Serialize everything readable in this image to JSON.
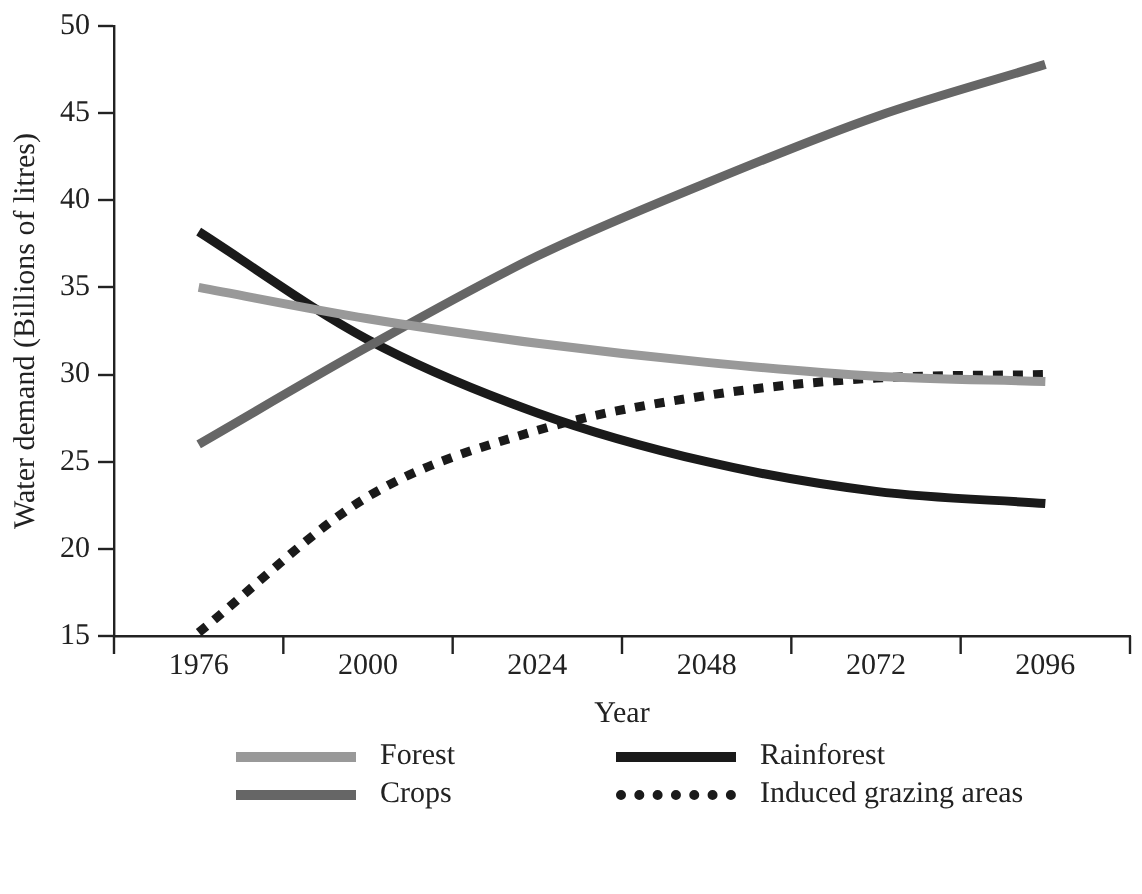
{
  "chart_data": {
    "type": "line",
    "xlabel": "Year",
    "ylabel": "Water demand (Billions of litres)",
    "x": [
      1976,
      2000,
      2024,
      2048,
      2072,
      2096
    ],
    "xlim": [
      1964,
      2108
    ],
    "xticks": [
      {
        "value": 1964,
        "label": null
      },
      1976,
      {
        "value": 1988,
        "label": null
      },
      2000,
      {
        "value": 2012,
        "label": null
      },
      2024,
      {
        "value": 2036,
        "label": null
      },
      2048,
      {
        "value": 2060,
        "label": null
      },
      2072,
      {
        "value": 2084,
        "label": null
      },
      2096,
      {
        "value": 2108,
        "label": null
      }
    ],
    "ylim": [
      15,
      50
    ],
    "yticks": [
      15,
      20,
      25,
      30,
      35,
      40,
      45,
      50
    ],
    "grid": false,
    "legend": "bottom",
    "marker": "none",
    "series": [
      {
        "name": "Forest",
        "color": "#999999",
        "values": [
          35,
          33.2,
          31.8,
          30.7,
          29.9,
          29.6
        ]
      },
      {
        "name": "Crops",
        "color": "#666666",
        "values": [
          26,
          31.6,
          36.8,
          41,
          44.8,
          47.8
        ]
      },
      {
        "name": "Rainforest",
        "color": "#1a1a1a",
        "values": [
          38.2,
          32,
          27.8,
          25,
          23.3,
          22.6
        ]
      },
      {
        "name": "Induced grazing areas",
        "color": "#1a1a1a",
        "line_style": "dotted",
        "values": [
          15.2,
          23,
          26.8,
          28.8,
          29.8,
          30
        ]
      }
    ]
  }
}
